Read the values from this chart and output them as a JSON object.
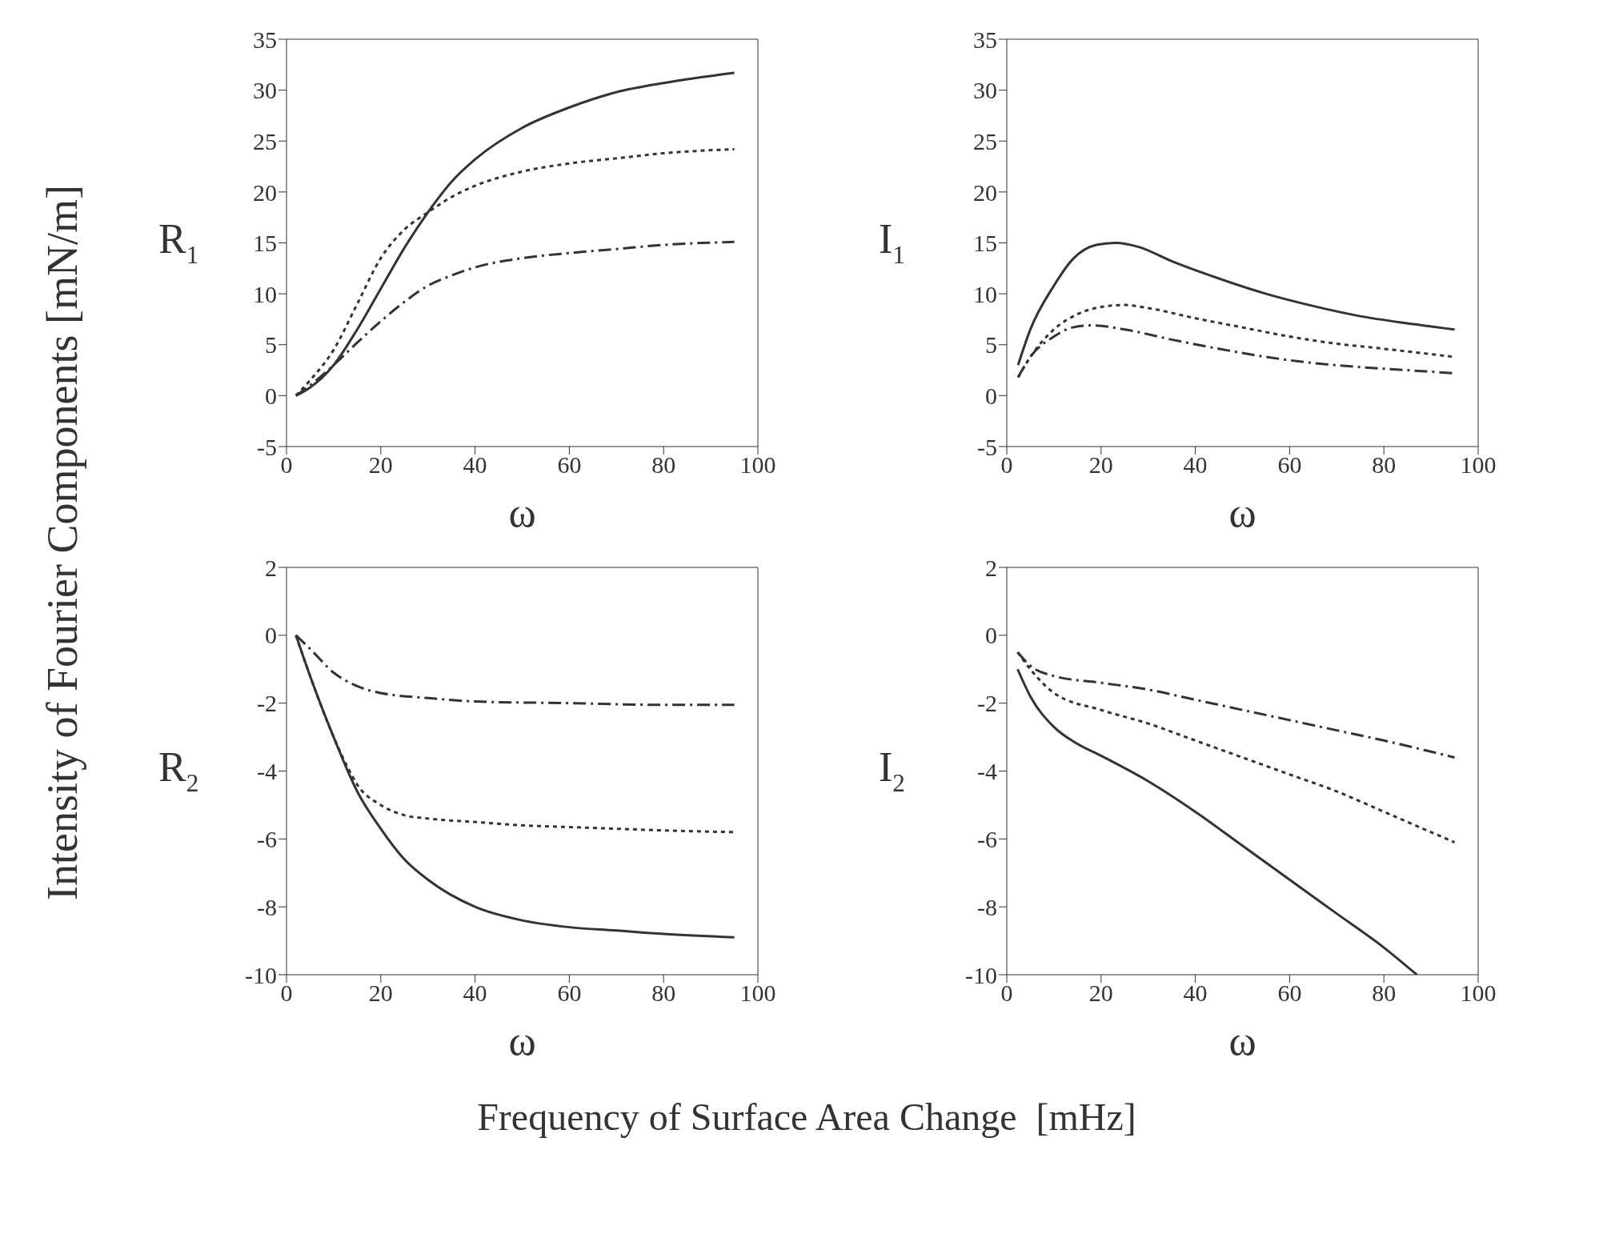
{
  "chart_data": [
    {
      "type": "line",
      "ylabel": "R$_{1}$",
      "xlabel": "ω",
      "xlim": [
        0,
        100
      ],
      "xticks": [
        0,
        20,
        40,
        60,
        80,
        100
      ],
      "ylim": [
        -5,
        35
      ],
      "yticks": [
        -5,
        0,
        5,
        10,
        15,
        20,
        25,
        30,
        35
      ],
      "annotations": [
        "Intensity of Fourier Components [mN/m]",
        "Frequency of Surface Area Change  [mHz]"
      ],
      "series": [
        {
          "color": "#333333",
          "line_style": "solid",
          "x": [
            2,
            5,
            10,
            15,
            20,
            25,
            30,
            35,
            40,
            50,
            60,
            70,
            80,
            95
          ],
          "values": [
            0,
            0.8,
            3,
            6.5,
            10.5,
            14.5,
            18,
            21,
            23.2,
            26.3,
            28.3,
            29.8,
            30.7,
            31.7
          ]
        },
        {
          "color": "#333333",
          "line_style": "dotted",
          "x": [
            2,
            5,
            10,
            15,
            20,
            25,
            30,
            35,
            40,
            50,
            60,
            70,
            80,
            95
          ],
          "values": [
            0,
            1.5,
            4.5,
            9,
            13.5,
            16.3,
            18,
            19.5,
            20.6,
            22,
            22.8,
            23.3,
            23.8,
            24.2
          ]
        },
        {
          "color": "#333333",
          "line_style": "dashed",
          "x": [
            2,
            5,
            10,
            15,
            20,
            25,
            30,
            35,
            40,
            50,
            60,
            70,
            80,
            95
          ],
          "values": [
            0,
            1,
            3,
            5.2,
            7.3,
            9.2,
            10.8,
            11.8,
            12.6,
            13.5,
            14,
            14.4,
            14.8,
            15.1
          ]
        }
      ]
    },
    {
      "type": "line",
      "ylabel": "I$_{1}$",
      "xlabel": "ω",
      "xlim": [
        0,
        100
      ],
      "xticks": [
        0,
        20,
        40,
        60,
        80,
        100
      ],
      "ylim": [
        -5,
        35
      ],
      "yticks": [
        -5,
        0,
        5,
        10,
        15,
        20,
        25,
        30,
        35
      ],
      "series": [
        {
          "color": "#333333",
          "line_style": "solid",
          "x": [
            2.4,
            5,
            10,
            14,
            19,
            23,
            28,
            35,
            45,
            55,
            65,
            75,
            85,
            95
          ],
          "values": [
            3,
            6.5,
            10.8,
            13.4,
            14.8,
            15,
            14.6,
            13.2,
            11.5,
            10,
            8.8,
            7.8,
            7.1,
            6.5
          ]
        },
        {
          "color": "#333333",
          "line_style": "dotted",
          "x": [
            2.4,
            5,
            10,
            15,
            20,
            25,
            30,
            40,
            50,
            60,
            70,
            80,
            95
          ],
          "values": [
            1.8,
            3.8,
            6.5,
            8,
            8.7,
            8.9,
            8.6,
            7.6,
            6.7,
            5.8,
            5.1,
            4.6,
            3.8
          ]
        },
        {
          "color": "#333333",
          "line_style": "dashed",
          "x": [
            2.4,
            5,
            10,
            14,
            18,
            25,
            35,
            45,
            55,
            65,
            75,
            85,
            95
          ],
          "values": [
            1.8,
            3.8,
            5.8,
            6.7,
            6.9,
            6.5,
            5.5,
            4.6,
            3.8,
            3.2,
            2.8,
            2.5,
            2.2
          ]
        }
      ]
    },
    {
      "type": "line",
      "ylabel": "R$_{2}$",
      "xlabel": "ω",
      "xlim": [
        0,
        100
      ],
      "xticks": [
        0,
        20,
        40,
        60,
        80,
        100
      ],
      "ylim": [
        -10,
        2
      ],
      "yticks": [
        -10,
        -8,
        -6,
        -4,
        -2,
        0,
        2
      ],
      "series": [
        {
          "color": "#333333",
          "line_style": "solid",
          "x": [
            2,
            5,
            10,
            15,
            20,
            25,
            30,
            40,
            50,
            60,
            70,
            80,
            95
          ],
          "values": [
            0,
            -1.2,
            -3,
            -4.6,
            -5.7,
            -6.6,
            -7.2,
            -8,
            -8.4,
            -8.6,
            -8.7,
            -8.8,
            -8.9
          ]
        },
        {
          "color": "#333333",
          "line_style": "dotted",
          "x": [
            2,
            5,
            10,
            13,
            15,
            20,
            25,
            30,
            40,
            50,
            60,
            70,
            80,
            95
          ],
          "values": [
            0,
            -1.2,
            -3,
            -3.9,
            -4.4,
            -5,
            -5.3,
            -5.4,
            -5.5,
            -5.6,
            -5.65,
            -5.7,
            -5.75,
            -5.8
          ]
        },
        {
          "color": "#333333",
          "line_style": "dashed",
          "x": [
            2,
            5,
            10,
            15,
            20,
            30,
            40,
            60,
            80,
            95
          ],
          "values": [
            0,
            -0.4,
            -1.1,
            -1.5,
            -1.7,
            -1.85,
            -1.95,
            -2,
            -2.05,
            -2.05
          ]
        }
      ]
    },
    {
      "type": "line",
      "ylabel": "I$_{2}$",
      "xlabel": "ω",
      "xlim": [
        0,
        100
      ],
      "xticks": [
        0,
        20,
        40,
        60,
        80,
        100
      ],
      "ylim": [
        -10,
        2
      ],
      "yticks": [
        -10,
        -8,
        -6,
        -4,
        -2,
        0,
        2
      ],
      "series": [
        {
          "color": "#333333",
          "line_style": "solid",
          "x": [
            2.3,
            5,
            10,
            15,
            20,
            30,
            40,
            50,
            60,
            70,
            80,
            87
          ],
          "values": [
            -1,
            -1.8,
            -2.7,
            -3.2,
            -3.55,
            -4.3,
            -5.2,
            -6.2,
            -7.2,
            -8.2,
            -9.2,
            -10
          ]
        },
        {
          "color": "#333333",
          "line_style": "dotted",
          "x": [
            2.3,
            5,
            10,
            20,
            30,
            40,
            50,
            60,
            70,
            80,
            95
          ],
          "values": [
            -0.5,
            -1,
            -1.7,
            -2.2,
            -2.6,
            -3.1,
            -3.6,
            -4.1,
            -4.6,
            -5.2,
            -6.1
          ]
        },
        {
          "color": "#333333",
          "line_style": "dashed",
          "x": [
            2.3,
            5,
            10,
            20,
            30,
            40,
            50,
            60,
            70,
            80,
            95
          ],
          "values": [
            -0.5,
            -0.9,
            -1.2,
            -1.4,
            -1.6,
            -1.9,
            -2.2,
            -2.5,
            -2.8,
            -3.1,
            -3.6
          ]
        }
      ]
    }
  ]
}
